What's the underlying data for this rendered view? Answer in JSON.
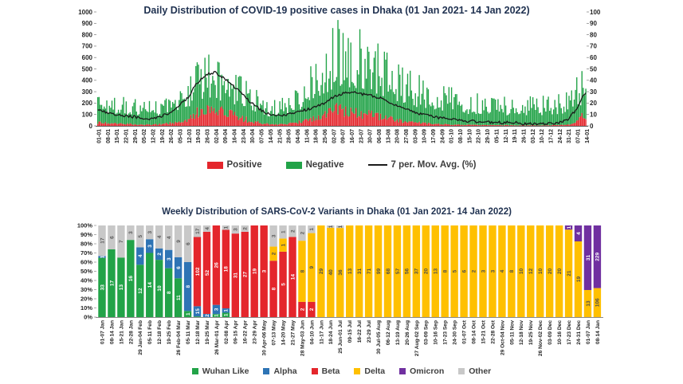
{
  "chart_data": [
    {
      "type": "bar",
      "subtype": "daily stacked columns with moving-average line",
      "title": "Daily Distribution of COVID-19 positive cases in Dhaka (01 Jan 2021- 14 Jan 2022)",
      "left_axis": {
        "ticks": [
          "0",
          "100",
          "200",
          "300",
          "400",
          "500",
          "600",
          "700",
          "800",
          "900",
          "1000"
        ],
        "max": 1000
      },
      "right_axis": {
        "ticks": [
          "0",
          "10",
          "20",
          "30",
          "40",
          "50",
          "60",
          "70",
          "80",
          "90",
          "100"
        ],
        "max": 100
      },
      "x_labels": [
        "01-01",
        "08-01",
        "15-01",
        "22-01",
        "29-01",
        "05-02",
        "12-02",
        "19-02",
        "26-02",
        "05-03",
        "12-03",
        "19-03",
        "26-03",
        "02-04",
        "09-04",
        "16-04",
        "23-04",
        "30-04",
        "07-05",
        "14-05",
        "21-05",
        "28-05",
        "04-06",
        "11-06",
        "18-06",
        "25-06",
        "02-07",
        "09-07",
        "16-07",
        "23-07",
        "30-07",
        "06-08",
        "13-08",
        "20-08",
        "27-08",
        "03-09",
        "10-09",
        "17-09",
        "24-09",
        "01-10",
        "08-10",
        "15-10",
        "22-10",
        "29-10",
        "05-11",
        "12-11",
        "19-11",
        "26-11",
        "03-12",
        "10-12",
        "17-12",
        "24-12",
        "31-21",
        "07-01",
        "14-01"
      ],
      "legend": [
        {
          "label": "Positive",
          "color": "#e4262c",
          "type": "box"
        },
        {
          "label": "Negative",
          "color": "#22a348",
          "type": "box"
        },
        {
          "label": "7 per. Mov. Avg. (%)",
          "color": "#1a1a1a",
          "type": "line"
        }
      ],
      "weekly_anchors": {
        "note": "approximate weekly-read values; daily bars fluctuate around these",
        "total_tests": [
          230,
          210,
          190,
          180,
          170,
          160,
          150,
          170,
          200,
          260,
          320,
          400,
          440,
          420,
          400,
          350,
          300,
          250,
          200,
          150,
          160,
          180,
          250,
          320,
          400,
          480,
          600,
          680,
          620,
          650,
          550,
          500,
          450,
          400,
          350,
          320,
          300,
          280,
          260,
          240,
          220,
          200,
          200,
          190,
          180,
          180,
          170,
          170,
          180,
          180,
          190,
          200,
          220,
          300,
          380
        ],
        "positive": [
          30,
          25,
          20,
          18,
          15,
          12,
          12,
          15,
          25,
          40,
          70,
          120,
          150,
          150,
          130,
          100,
          70,
          45,
          25,
          15,
          14,
          18,
          30,
          45,
          65,
          95,
          150,
          140,
          120,
          120,
          100,
          90,
          70,
          55,
          40,
          30,
          25,
          18,
          15,
          12,
          10,
          8,
          7,
          6,
          6,
          6,
          5,
          4,
          4,
          4,
          5,
          6,
          12,
          45,
          115
        ],
        "mov_avg_pct": [
          15,
          12,
          10,
          9,
          8,
          7,
          6,
          8,
          12,
          18,
          25,
          38,
          45,
          47,
          42,
          35,
          28,
          20,
          14,
          10,
          9,
          10,
          12,
          14,
          16,
          20,
          25,
          28,
          30,
          28,
          27,
          25,
          22,
          18,
          15,
          12,
          10,
          8,
          7,
          6,
          5,
          4,
          4,
          3,
          3,
          3,
          3,
          2,
          2,
          2,
          2,
          3,
          5,
          15,
          30
        ]
      }
    },
    {
      "type": "bar",
      "subtype": "100% stacked columns",
      "title": "Weekly Distribution of SARS-CoV-2 Variants in Dhaka (01 Jan 2021- 14 Jan 2022)",
      "y_axis": {
        "ticks": [
          "0%",
          "10%",
          "20%",
          "30%",
          "40%",
          "50%",
          "60%",
          "70%",
          "80%",
          "90%",
          "100%"
        ]
      },
      "categories": [
        "01-07 Jan",
        "08-14 Jan",
        "15-21 Jan",
        "22-28 Jan",
        "29 Jan-04 Feb",
        "05-11 Feb",
        "12-18 Feb",
        "19-25 Feb",
        "26 Feb-04 Mar",
        "05-11 Mar",
        "12-18 Mar",
        "19-25 Mar",
        "26 Mar-01 Apr",
        "02-08 Apr",
        "09-15 Apr",
        "16-22 Apr",
        "23-29 Apr",
        "30 Apr-06 May",
        "07-13 May",
        "14-20 May",
        "21-27 May",
        "28 May-03 Jun",
        "04-10 Jun",
        "11-17 Jun",
        "18-24 Jun",
        "25 Jun-01 Jul",
        "09-15 Jul",
        "16-22 Jul",
        "23-29 Jul",
        "30 Jul-05 Aug",
        "06-12 Aug",
        "13-19 Aug",
        "20-26 Aug",
        "27 Aug-02 Sep",
        "03-09 Sep",
        "10-16 Sep",
        "17-23 Sep",
        "24-30 Sep",
        "01-07 Oct",
        "08-14 Oct",
        "15-21 Oct",
        "22-28 Oct",
        "29 Oct-04 Nov",
        "05-11 Nov",
        "12-18 Nov",
        "19-25 Nov",
        "26 Nov-02 Dec",
        "03-09 Dec",
        "10-16 Dec",
        "17-23 Dec",
        "24-31 Dec",
        "01-07 Jan",
        "08-14 Jan"
      ],
      "series": [
        {
          "name": "Wuhan Like",
          "color": "#22a348",
          "label_color": "#ffffff",
          "values": [
            33,
            17,
            13,
            16,
            12,
            14,
            10,
            8,
            11,
            1,
            1,
            0,
            1,
            1,
            0,
            0,
            0,
            0,
            0,
            0,
            0,
            0,
            0,
            0,
            0,
            0,
            0,
            0,
            0,
            0,
            0,
            0,
            0,
            0,
            0,
            0,
            0,
            0,
            0,
            0,
            0,
            0,
            0,
            0,
            0,
            0,
            0,
            0,
            0,
            0,
            0,
            0,
            0
          ]
        },
        {
          "name": "Alpha",
          "color": "#2e74b5",
          "label_color": "#ffffff",
          "values": [
            1,
            0,
            0,
            0,
            4,
            3,
            2,
            3,
            6,
            8,
            15,
            2,
            3,
            1,
            0,
            0,
            0,
            0,
            0,
            0,
            0,
            0,
            0,
            0,
            0,
            0,
            0,
            0,
            0,
            0,
            0,
            0,
            0,
            0,
            0,
            0,
            0,
            0,
            0,
            0,
            0,
            0,
            0,
            0,
            0,
            0,
            0,
            0,
            0,
            0,
            0,
            0,
            0
          ]
        },
        {
          "name": "Beta",
          "color": "#e4262c",
          "label_color": "#ffffff",
          "values": [
            0,
            0,
            0,
            0,
            0,
            0,
            0,
            0,
            0,
            0,
            102,
            52,
            26,
            18,
            31,
            27,
            19,
            3,
            8,
            5,
            14,
            2,
            2,
            0,
            0,
            0,
            0,
            0,
            0,
            0,
            0,
            0,
            0,
            0,
            0,
            0,
            0,
            0,
            0,
            0,
            0,
            0,
            0,
            0,
            0,
            0,
            0,
            0,
            0,
            0,
            0,
            0,
            0
          ]
        },
        {
          "name": "Delta",
          "color": "#ffc000",
          "label_color": "#4d4d4d",
          "values": [
            0,
            0,
            0,
            0,
            0,
            0,
            0,
            0,
            0,
            0,
            0,
            0,
            0,
            0,
            0,
            0,
            0,
            0,
            2,
            1,
            0,
            8,
            9,
            29,
            40,
            36,
            13,
            31,
            71,
            99,
            68,
            57,
            56,
            37,
            20,
            13,
            8,
            5,
            6,
            2,
            3,
            3,
            4,
            8,
            10,
            12,
            10,
            20,
            20,
            21,
            19,
            13,
            106
          ]
        },
        {
          "name": "Omicron",
          "color": "#7030a0",
          "label_color": "#ffffff",
          "values": [
            0,
            0,
            0,
            0,
            0,
            0,
            0,
            0,
            0,
            0,
            0,
            0,
            0,
            0,
            0,
            0,
            0,
            0,
            0,
            0,
            0,
            0,
            0,
            0,
            0,
            0,
            0,
            0,
            0,
            0,
            0,
            0,
            0,
            0,
            0,
            0,
            0,
            0,
            0,
            0,
            0,
            0,
            0,
            0,
            0,
            0,
            0,
            0,
            0,
            1,
            4,
            31,
            229
          ]
        },
        {
          "name": "Other",
          "color": "#c8c8c8",
          "label_color": "#595959",
          "values": [
            17,
            6,
            7,
            3,
            5,
            3,
            4,
            4,
            9,
            6,
            17,
            4,
            0,
            1,
            3,
            2,
            0,
            0,
            3,
            1,
            2,
            2,
            1,
            0,
            1,
            1,
            0,
            0,
            0,
            0,
            0,
            0,
            0,
            0,
            0,
            0,
            0,
            0,
            0,
            0,
            0,
            0,
            0,
            0,
            0,
            0,
            0,
            0,
            0,
            0,
            0,
            0,
            0
          ]
        }
      ]
    }
  ]
}
